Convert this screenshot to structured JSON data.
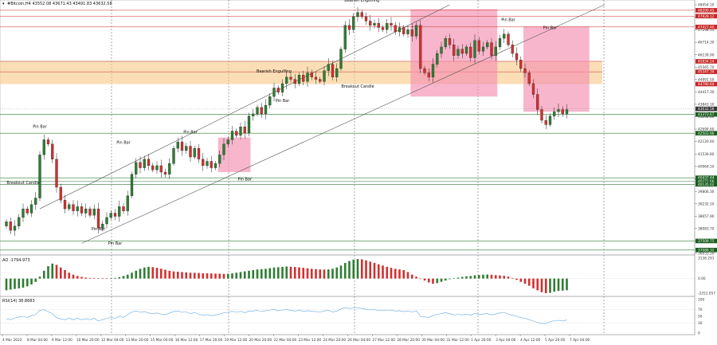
{
  "header": {
    "symbol_text": "#Bitcoin,H4  43552.08 43671.43 43491.83 43632.58",
    "ao_label": "AO -1794.973",
    "rsi_label": "RSI(14) 38.8683"
  },
  "colors": {
    "bull": "#2e7d32",
    "bear": "#d32f2f",
    "zone_orange": "#f7c37a",
    "zone_pink": "#f48fb1",
    "channel": "#555555",
    "rsi_line": "#64a8e0"
  },
  "chart_data": {
    "type": "candlestick",
    "price_ticks": [
      "48454.10",
      "47877.85",
      "47298.55",
      "46714.30",
      "46139.90",
      "45565.70",
      "44991.50",
      "44417.30",
      "43843.10",
      "43268.80",
      "42694.60",
      "42120.40",
      "41539.80",
      "40964.10",
      "40381.70",
      "39806.30",
      "39232.10",
      "38657.90",
      "38083.70",
      "37509.50",
      "36935.20"
    ],
    "price_tags": [
      {
        "text": "48200.45",
        "value": 48200.45,
        "color": "#c62828"
      },
      {
        "text": "47929.12",
        "value": 47929.12,
        "color": "#c62828"
      },
      {
        "text": "47427.40",
        "value": 47427.4,
        "color": "#c62828"
      },
      {
        "text": "45834.24",
        "value": 45834.24,
        "color": "#c62828"
      },
      {
        "text": "45347.34",
        "value": 45347.34,
        "color": "#c62828"
      },
      {
        "text": "44780.64",
        "value": 44780.64,
        "color": "#c62828"
      },
      {
        "text": "43632.58",
        "value": 43632.58,
        "color": "#333333"
      },
      {
        "text": "43373.67",
        "value": 43373.67,
        "color": "#1b5e20"
      },
      {
        "text": "42503.96",
        "value": 42503.96,
        "color": "#1b5e20"
      },
      {
        "text": "40437.44",
        "value": 40437.44,
        "color": "#1b5e20"
      },
      {
        "text": "40271.66",
        "value": 40271.66,
        "color": "#1b5e20"
      },
      {
        "text": "40135.02",
        "value": 40135.02,
        "color": "#1b5e20"
      },
      {
        "text": "37509.75",
        "value": 37509.75,
        "color": "#1b5e20"
      },
      {
        "text": "37089.32",
        "value": 37089.32,
        "color": "#1b5e20"
      }
    ],
    "resistance_levels": [
      48200.45,
      47929.12,
      47427.4
    ],
    "support_levels": [
      43373.67,
      42503.96,
      40437.44,
      40271.66,
      40135.02,
      37509.75,
      37089.32
    ],
    "orange_zones": [
      [
        45347.34,
        45834.24
      ],
      [
        44780.64,
        45347.34
      ]
    ],
    "pink_zones": [
      {
        "from": 51,
        "to": 58,
        "top": 42300,
        "bottom": 40700
      },
      {
        "from": 97,
        "to": 117,
        "top": 48250,
        "bottom": 44200
      },
      {
        "from": 124,
        "to": 139,
        "top": 47450,
        "bottom": 43500
      }
    ],
    "x_labels": [
      "4 Mar 2022",
      "8 Mar 04:00",
      "9 Mar 12:00",
      "10 Mar 20:00",
      "12 Mar 04:00",
      "13 Mar 20:00",
      "15 Mar 04:00",
      "16 Mar 12:00",
      "17 Mar 20:00",
      "19 Mar 12:00",
      "20 Mar 20:00",
      "22 Mar 04:00",
      "23 Mar 12:00",
      "24 Mar 20:00",
      "26 Mar 04:00",
      "27 Mar 12:00",
      "28 Mar 20:00",
      "30 Mar 04:00",
      "31 Mar 12:00",
      "1 Apr 20:00",
      "3 Apr 04:00",
      "4 Apr 12:00",
      "5 Apr 20:00",
      "7 Apr 04:00"
    ],
    "annotations": [
      {
        "text": "Pin Bar",
        "i": 8,
        "price": 42750
      },
      {
        "text": "Breakout Candle",
        "i": 4,
        "price": 40150
      },
      {
        "text": "Pin Bar",
        "i": 22,
        "price": 38000
      },
      {
        "text": "Pin Bar",
        "i": 26,
        "price": 37350
      },
      {
        "text": "Pin Bar",
        "i": 28,
        "price": 42020
      },
      {
        "text": "Pin Bar",
        "i": 44,
        "price": 42500
      },
      {
        "text": "Pin Bar",
        "i": 57,
        "price": 40320
      },
      {
        "text": "Pin Bar",
        "i": 66,
        "price": 43950
      },
      {
        "text": "Bearish Engulfing",
        "i": 64,
        "price": 45320
      },
      {
        "text": "Breakout Candle",
        "i": 84,
        "price": 44620
      },
      {
        "text": "Bearish Engulfing",
        "i": 85,
        "price": 48600
      },
      {
        "text": "Pin Bar",
        "i": 120,
        "price": 47700
      },
      {
        "text": "Pin Bar",
        "i": 130,
        "price": 47330
      }
    ],
    "closes": [
      38400,
      38000,
      38200,
      38600,
      39000,
      38800,
      39200,
      39500,
      41500,
      42200,
      42000,
      41300,
      40000,
      39400,
      39000,
      39200,
      38900,
      39100,
      38800,
      39000,
      38700,
      39000,
      38100,
      38300,
      38600,
      38800,
      38650,
      39100,
      38900,
      39600,
      40600,
      41150,
      40900,
      41300,
      41000,
      40800,
      41000,
      40700,
      40600,
      41100,
      41800,
      42100,
      41700,
      41900,
      41400,
      41800,
      41300,
      41000,
      41200,
      40900,
      41100,
      41500,
      42000,
      42200,
      42600,
      42400,
      42800,
      42500,
      43300,
      43400,
      43700,
      43400,
      43800,
      44200,
      44600,
      44400,
      44800,
      45100,
      45000,
      44800,
      45200,
      44900,
      45300,
      45100,
      45000,
      44900,
      45400,
      45700,
      45100,
      45500,
      46400,
      47500,
      47300,
      47900,
      48100,
      47900,
      47700,
      47500,
      47600,
      47400,
      47300,
      47600,
      47500,
      47200,
      47400,
      47100,
      47300,
      47000,
      47500,
      45500,
      45300,
      45100,
      45700,
      46200,
      46500,
      46900,
      46600,
      46100,
      46400,
      46200,
      46500,
      46000,
      46800,
      46300,
      46500,
      46700,
      46100,
      46500,
      46900,
      47100,
      46600,
      46200,
      45900,
      45500,
      45300,
      44800,
      44300,
      43600,
      43100,
      42900,
      43300,
      43500,
      43600,
      43400,
      43600
    ],
    "ao_axis": [
      "3136.291",
      "0.00",
      "-2251.057"
    ],
    "ao_values": [
      -1800,
      -1700,
      -1600,
      -1500,
      -1400,
      -1200,
      -900,
      -500,
      300,
      1200,
      1900,
      2300,
      2100,
      1700,
      1300,
      900,
      600,
      400,
      250,
      150,
      100,
      80,
      60,
      50,
      40,
      60,
      100,
      200,
      400,
      600,
      900,
      1200,
      1500,
      1700,
      1800,
      1750,
      1650,
      1500,
      1350,
      1200,
      1100,
      1050,
      1000,
      950,
      900,
      880,
      860,
      820,
      800,
      780,
      760,
      740,
      720,
      730,
      800,
      900,
      1000,
      1100,
      1200,
      1300,
      1400,
      1450,
      1500,
      1600,
      1700,
      1750,
      1800,
      1850,
      1820,
      1780,
      1720,
      1650,
      1580,
      1500,
      1450,
      1400,
      1380,
      1400,
      1500,
      1700,
      2000,
      2400,
      2700,
      2900,
      3000,
      2950,
      2800,
      2600,
      2400,
      2200,
      2000,
      1800,
      1650,
      1500,
      1400,
      1300,
      1000,
      600,
      300,
      0,
      -300,
      -600,
      -800,
      -700,
      -500,
      -300,
      -100,
      50,
      150,
      250,
      350,
      400,
      500,
      550,
      600,
      620,
      580,
      520,
      480,
      420,
      300,
      100,
      -200,
      -500,
      -800,
      -1100,
      -1500,
      -1800,
      -2100,
      -2250,
      -2200,
      -2000,
      -1900,
      -1850,
      -1795
    ],
    "rsi_axis": [
      "100",
      "70",
      "50",
      "30",
      "0"
    ],
    "rsi_values": [
      42,
      40,
      45,
      48,
      50,
      47,
      52,
      55,
      68,
      70,
      64,
      58,
      46,
      42,
      40,
      44,
      40,
      44,
      40,
      43,
      40,
      44,
      36,
      40,
      44,
      46,
      44,
      50,
      47,
      55,
      63,
      66,
      62,
      64,
      60,
      58,
      60,
      56,
      55,
      60,
      64,
      66,
      62,
      63,
      58,
      61,
      56,
      53,
      55,
      52,
      54,
      57,
      61,
      62,
      65,
      62,
      65,
      61,
      66,
      66,
      68,
      64,
      67,
      69,
      70,
      67,
      69,
      70,
      68,
      66,
      68,
      65,
      67,
      65,
      64,
      63,
      66,
      68,
      63,
      66,
      72,
      76,
      73,
      75,
      76,
      73,
      71,
      69,
      70,
      68,
      67,
      69,
      68,
      66,
      67,
      64,
      66,
      63,
      67,
      50,
      48,
      47,
      52,
      56,
      58,
      61,
      58,
      54,
      56,
      54,
      57,
      53,
      59,
      55,
      57,
      58,
      54,
      57,
      60,
      62,
      57,
      53,
      50,
      46,
      44,
      40,
      36,
      31,
      29,
      28,
      34,
      37,
      38,
      36,
      39
    ]
  }
}
